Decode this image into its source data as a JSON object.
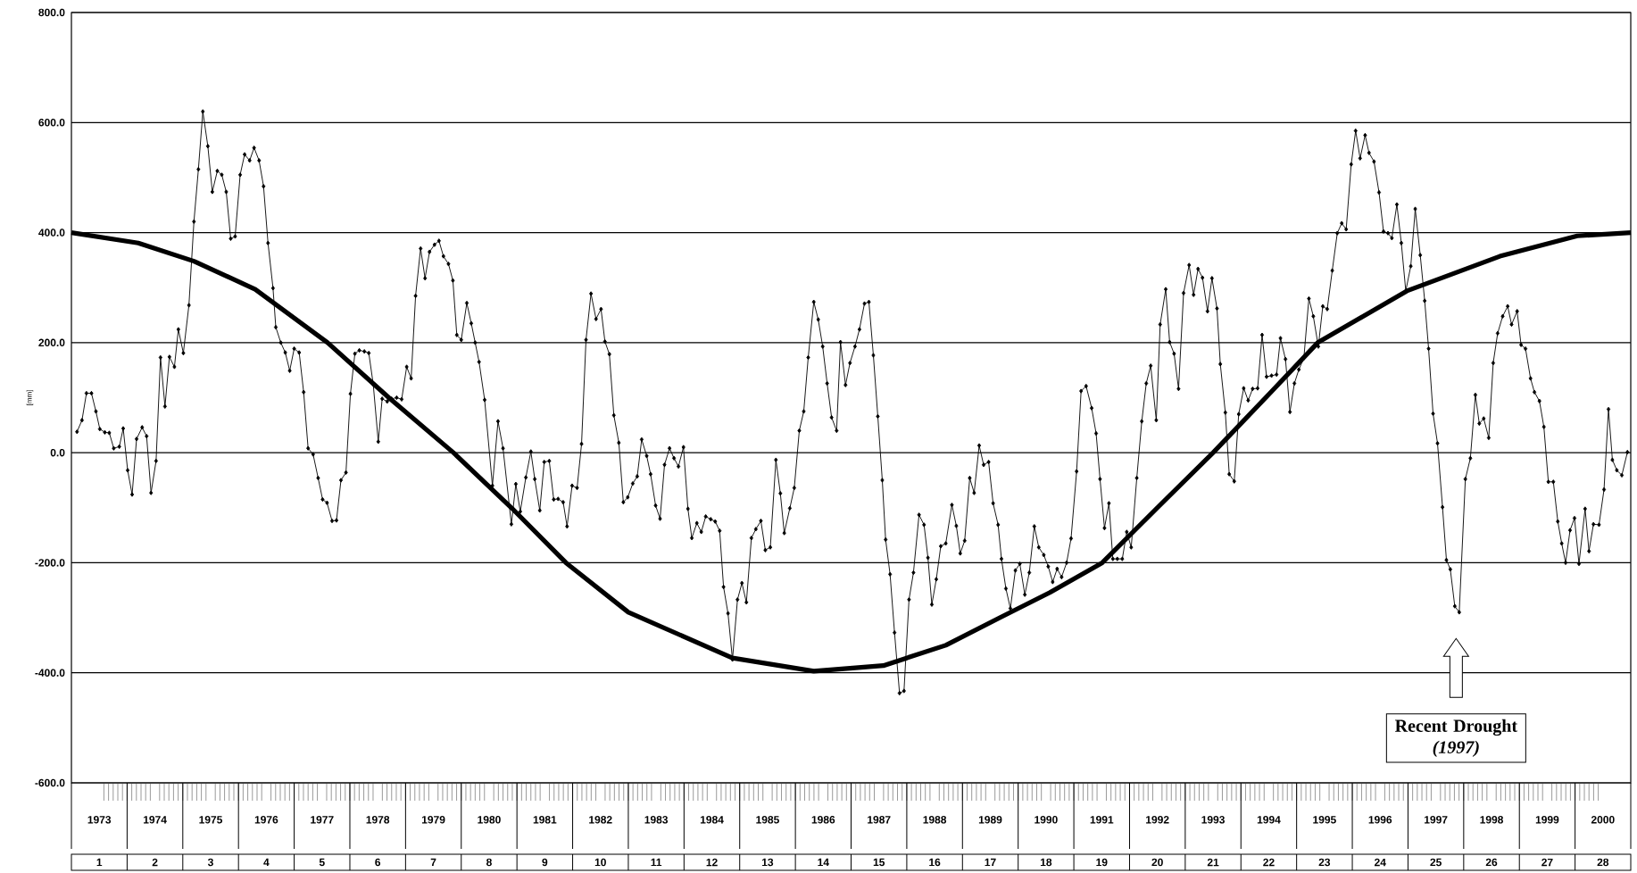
{
  "chart_data": {
    "type": "line",
    "ylabel": "[mm]",
    "xlim": [
      1973,
      2001
    ],
    "ylim": [
      -600,
      800
    ],
    "yticks": [
      {
        "value": -600,
        "label": "-600.0"
      },
      {
        "value": -400,
        "label": "-400.0"
      },
      {
        "value": -200,
        "label": "-200.0"
      },
      {
        "value": 0,
        "label": "0.0"
      },
      {
        "value": 200,
        "label": "200.0"
      },
      {
        "value": 400,
        "label": "400.0"
      },
      {
        "value": 600,
        "label": "600.0"
      },
      {
        "value": 800,
        "label": "800.0"
      }
    ],
    "xticks": [
      {
        "value": 1973.5,
        "label": "1973"
      },
      {
        "value": 1974.5,
        "label": "1974"
      },
      {
        "value": 1975.5,
        "label": "1975"
      },
      {
        "value": 1976.5,
        "label": "1976"
      },
      {
        "value": 1977.5,
        "label": "1977"
      },
      {
        "value": 1978.5,
        "label": "1978"
      },
      {
        "value": 1979.5,
        "label": "1979"
      },
      {
        "value": 1980.5,
        "label": "1980"
      },
      {
        "value": 1981.5,
        "label": "1981"
      },
      {
        "value": 1982.5,
        "label": "1982"
      },
      {
        "value": 1983.5,
        "label": "1983"
      },
      {
        "value": 1984.5,
        "label": "1984"
      },
      {
        "value": 1985.5,
        "label": "1985"
      },
      {
        "value": 1986.5,
        "label": "1986"
      },
      {
        "value": 1987.5,
        "label": "1987"
      },
      {
        "value": 1988.5,
        "label": "1988"
      },
      {
        "value": 1989.5,
        "label": "1989"
      },
      {
        "value": 1990.5,
        "label": "1990"
      },
      {
        "value": 1991.5,
        "label": "1991"
      },
      {
        "value": 1992.5,
        "label": "1992"
      },
      {
        "value": 1993.5,
        "label": "1993"
      },
      {
        "value": 1994.5,
        "label": "1994"
      },
      {
        "value": 1995.5,
        "label": "1995"
      },
      {
        "value": 1996.5,
        "label": "1996"
      },
      {
        "value": 1997.5,
        "label": "1997"
      },
      {
        "value": 1998.5,
        "label": "1998"
      },
      {
        "value": 1999.5,
        "label": "1999"
      },
      {
        "value": 2000.5,
        "label": "2000"
      }
    ],
    "x2lim": [
      0.5,
      28.5
    ],
    "x2ticks": [
      1,
      2,
      3,
      4,
      5,
      6,
      7,
      8,
      9,
      10,
      11,
      12,
      13,
      14,
      15,
      16,
      17,
      18,
      19,
      20,
      21,
      22,
      23,
      24,
      25,
      26,
      27,
      28
    ],
    "grid": "y",
    "marker": "diamond",
    "line_style": "solid",
    "annotations": [
      "Recent Drought *(1997)*"
    ],
    "series": [
      {
        "color": "#000000",
        "x": [
          1973.1,
          1973.19,
          1973.27,
          1973.36,
          1973.44,
          1973.51,
          1973.6,
          1973.68,
          1973.76,
          1973.86,
          1973.93,
          1974.01,
          1974.09,
          1974.17,
          1974.27,
          1974.35,
          1974.43,
          1974.52,
          1974.6,
          1974.68,
          1974.76,
          1974.85,
          1974.92,
          1975.01,
          1975.11,
          1975.2,
          1975.28,
          1975.36,
          1975.45,
          1975.53,
          1975.62,
          1975.7,
          1975.78,
          1975.86,
          1975.94,
          1976.03,
          1976.11,
          1976.2,
          1976.28,
          1976.37,
          1976.45,
          1976.53,
          1976.62,
          1976.67,
          1976.76,
          1976.84,
          1976.92,
          1977.0,
          1977.09,
          1977.17,
          1977.25,
          1977.34,
          1977.43,
          1977.51,
          1977.59,
          1977.68,
          1977.76,
          1977.84,
          1977.93,
          1978.01,
          1978.09,
          1978.17,
          1978.26,
          1978.34,
          1978.42,
          1978.51,
          1978.58,
          1978.67,
          1978.75,
          1978.84,
          1978.93,
          1979.02,
          1979.1,
          1979.18,
          1979.27,
          1979.35,
          1979.43,
          1979.52,
          1979.6,
          1979.68,
          1979.77,
          1979.85,
          1979.92,
          1980.0,
          1980.1,
          1980.18,
          1980.25,
          1980.32,
          1980.42,
          1980.56,
          1980.66,
          1980.75,
          1980.9,
          1980.98,
          1981.06,
          1981.16,
          1981.25,
          1981.32,
          1981.41,
          1981.49,
          1981.58,
          1981.66,
          1981.74,
          1981.83,
          1981.9,
          1981.99,
          1982.08,
          1982.16,
          1982.24,
          1982.33,
          1982.42,
          1982.51,
          1982.58,
          1982.66,
          1982.74,
          1982.83,
          1982.91,
          1982.99,
          1983.08,
          1983.16,
          1983.24,
          1983.33,
          1983.4,
          1983.49,
          1983.57,
          1983.65,
          1983.74,
          1983.82,
          1983.9,
          1983.99,
          1984.07,
          1984.14,
          1984.23,
          1984.31,
          1984.39,
          1984.48,
          1984.56,
          1984.64,
          1984.71,
          1984.79,
          1984.87,
          1984.96,
          1985.04,
          1985.12,
          1985.21,
          1985.29,
          1985.38,
          1985.46,
          1985.55,
          1985.65,
          1985.73,
          1985.8,
          1985.9,
          1985.98,
          1986.07,
          1986.15,
          1986.23,
          1986.33,
          1986.41,
          1986.49,
          1986.57,
          1986.65,
          1986.74,
          1986.81,
          1986.9,
          1986.98,
          1987.07,
          1987.15,
          1987.24,
          1987.32,
          1987.4,
          1987.48,
          1987.56,
          1987.62,
          1987.7,
          1987.78,
          1987.87,
          1987.95,
          1988.04,
          1988.12,
          1988.22,
          1988.31,
          1988.38,
          1988.45,
          1988.53,
          1988.61,
          1988.7,
          1988.81,
          1988.89,
          1988.96,
          1989.04,
          1989.13,
          1989.21,
          1989.3,
          1989.38,
          1989.47,
          1989.55,
          1989.64,
          1989.7,
          1989.78,
          1989.86,
          1989.95,
          1990.03,
          1990.12,
          1990.2,
          1990.29,
          1990.37,
          1990.46,
          1990.54,
          1990.62,
          1990.7,
          1990.78,
          1990.87,
          1990.95,
          1991.05,
          1991.13,
          1991.22,
          1991.32,
          1991.4,
          1991.47,
          1991.55,
          1991.63,
          1991.7,
          1991.78,
          1991.87,
          1991.95,
          1992.03,
          1992.13,
          1992.22,
          1992.3,
          1992.38,
          1992.48,
          1992.55,
          1992.65,
          1992.72,
          1992.8,
          1992.88,
          1992.97,
          1993.07,
          1993.15,
          1993.23,
          1993.31,
          1993.4,
          1993.48,
          1993.57,
          1993.63,
          1993.72,
          1993.79,
          1993.88,
          1993.96,
          1994.05,
          1994.13,
          1994.21,
          1994.3,
          1994.38,
          1994.46,
          1994.55,
          1994.64,
          1994.71,
          1994.8,
          1994.88,
          1994.96,
          1995.04,
          1995.13,
          1995.22,
          1995.3,
          1995.39,
          1995.47,
          1995.55,
          1995.64,
          1995.73,
          1995.81,
          1995.89,
          1995.98,
          1996.06,
          1996.14,
          1996.23,
          1996.3,
          1996.39,
          1996.48,
          1996.56,
          1996.64,
          1996.71,
          1996.8,
          1996.88,
          1996.96,
          1997.05,
          1997.13,
          1997.22,
          1997.3,
          1997.37,
          1997.45,
          1997.53,
          1997.62,
          1997.69,
          1997.76,
          1997.84,
          1997.92,
          1998.03,
          1998.12,
          1998.21,
          1998.28,
          1998.36,
          1998.45,
          1998.53,
          1998.61,
          1998.7,
          1998.79,
          1998.86,
          1998.96,
          1999.03,
          1999.11,
          1999.2,
          1999.27,
          1999.36,
          1999.44,
          1999.52,
          1999.61,
          1999.69,
          1999.76,
          1999.83,
          1999.91,
          1999.99,
          2000.07,
          2000.18,
          2000.25,
          2000.33,
          2000.43,
          2000.52,
          2000.6,
          2000.67,
          2000.75,
          2000.84,
          2000.94
        ],
        "values": [
          38,
          59,
          108,
          108,
          75,
          43,
          37,
          36,
          8,
          11,
          44,
          -32,
          -76,
          25,
          46,
          30,
          -73,
          -15,
          173,
          84,
          174,
          156,
          224,
          181,
          268,
          420,
          515,
          620,
          557,
          474,
          512,
          505,
          474,
          389,
          393,
          505,
          542,
          531,
          554,
          531,
          484,
          381,
          299,
          228,
          200,
          182,
          149,
          189,
          182,
          110,
          8,
          -3,
          -46,
          -85,
          -91,
          -124,
          -123,
          -50,
          -36,
          107,
          180,
          186,
          184,
          181,
          124,
          20,
          98,
          93,
          98,
          100,
          97,
          156,
          135,
          285,
          371,
          317,
          365,
          378,
          385,
          357,
          343,
          313,
          214,
          205,
          272,
          235,
          200,
          165,
          96,
          -60,
          57,
          8,
          -130,
          -57,
          -107,
          -45,
          2,
          -48,
          -105,
          -17,
          -15,
          -85,
          -84,
          -90,
          -134,
          -60,
          -64,
          16,
          205,
          289,
          243,
          261,
          202,
          179,
          68,
          18,
          -90,
          -81,
          -56,
          -43,
          24,
          -6,
          -39,
          -96,
          -120,
          -22,
          8,
          -10,
          -25,
          10,
          -102,
          -155,
          -128,
          -144,
          -116,
          -121,
          -125,
          -142,
          -244,
          -292,
          -376,
          -267,
          -237,
          -272,
          -155,
          -139,
          -124,
          -177,
          -172,
          -13,
          -74,
          -146,
          -101,
          -64,
          40,
          75,
          173,
          274,
          242,
          193,
          126,
          64,
          40,
          201,
          123,
          163,
          193,
          224,
          271,
          274,
          177,
          66,
          -50,
          -158,
          -221,
          -327,
          -437,
          -433,
          -267,
          -218,
          -113,
          -131,
          -191,
          -276,
          -230,
          -170,
          -165,
          -95,
          -133,
          -183,
          -160,
          -46,
          -73,
          13,
          -22,
          -17,
          -92,
          -131,
          -193,
          -247,
          -283,
          -214,
          -202,
          -258,
          -218,
          -134,
          -172,
          -186,
          -207,
          -235,
          -211,
          -226,
          -200,
          -156,
          -34,
          112,
          121,
          81,
          35,
          -48,
          -137,
          -92,
          -193,
          -193,
          -193,
          -144,
          -172,
          -46,
          57,
          126,
          158,
          59,
          233,
          297,
          201,
          180,
          116,
          290,
          341,
          287,
          334,
          318,
          257,
          317,
          262,
          161,
          73,
          -39,
          -52,
          70,
          117,
          95,
          116,
          117,
          214,
          138,
          140,
          142,
          208,
          170,
          74,
          126,
          151,
          172,
          280,
          248,
          193,
          266,
          261,
          331,
          399,
          417,
          406,
          524,
          585,
          535,
          577,
          545,
          529,
          473,
          402,
          399,
          390,
          451,
          381,
          294,
          339,
          443,
          359,
          276,
          189,
          71,
          17,
          -99,
          -195,
          -212,
          -279,
          -290,
          -48,
          -10,
          105,
          53,
          62,
          27,
          163,
          217,
          248,
          266,
          233,
          257,
          196,
          189,
          135,
          110,
          94,
          47,
          -53,
          -53,
          -125,
          -165,
          -200,
          -141,
          -119,
          -202,
          -102,
          -179,
          -130,
          -131,
          -67,
          79,
          -13,
          -32,
          -41,
          1
        ]
      },
      {
        "color": "#000000",
        "marker": "none",
        "x": [
          1973.0,
          1974.2,
          1975.2,
          1976.3,
          1977.6,
          1978.7,
          1979.86,
          1980.9,
          1981.88,
          1983.0,
          1984.87,
          1986.33,
          1987.58,
          1988.7,
          1989.67,
          1990.57,
          1991.51,
          1992.5,
          1993.5,
          1994.54,
          1995.38,
          1996.98,
          1998.65,
          2000.04,
          2001.0
        ],
        "values": [
          400,
          381,
          348,
          297,
          200,
          100,
          0,
          -100,
          -200,
          -290,
          -373,
          -397,
          -387,
          -350,
          -300,
          -254,
          -200,
          -100,
          0,
          110,
          200,
          294,
          357,
          394,
          400
        ]
      }
    ]
  }
}
